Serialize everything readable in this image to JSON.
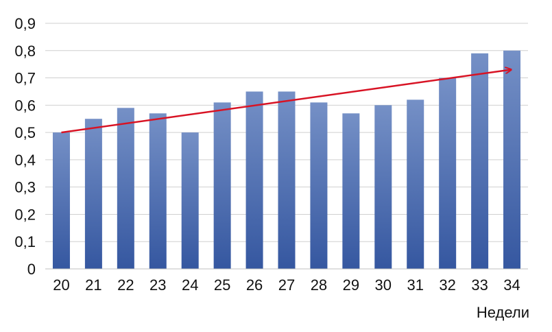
{
  "chart_data": {
    "type": "bar",
    "title": "",
    "xlabel": "Недели",
    "ylabel": "",
    "categories": [
      "20",
      "21",
      "22",
      "23",
      "24",
      "25",
      "26",
      "27",
      "28",
      "29",
      "30",
      "31",
      "32",
      "33",
      "34"
    ],
    "values": [
      0.5,
      0.55,
      0.59,
      0.57,
      0.5,
      0.61,
      0.65,
      0.65,
      0.61,
      0.57,
      0.6,
      0.62,
      0.7,
      0.79,
      0.8
    ],
    "y_ticks": [
      "0",
      "0,1",
      "0,2",
      "0,3",
      "0,4",
      "0,5",
      "0,6",
      "0,7",
      "0,8",
      "0,9"
    ],
    "ylim": [
      0,
      0.9
    ],
    "grid": true,
    "trend_arrow": {
      "from": {
        "x": "20",
        "y": 0.5
      },
      "to": {
        "x": "34",
        "y": 0.73
      }
    },
    "colors": {
      "bar_top": "#7590c6",
      "bar_bottom": "#3557a0",
      "arrow": "#d81324",
      "grid": "#cfcfcf"
    }
  }
}
